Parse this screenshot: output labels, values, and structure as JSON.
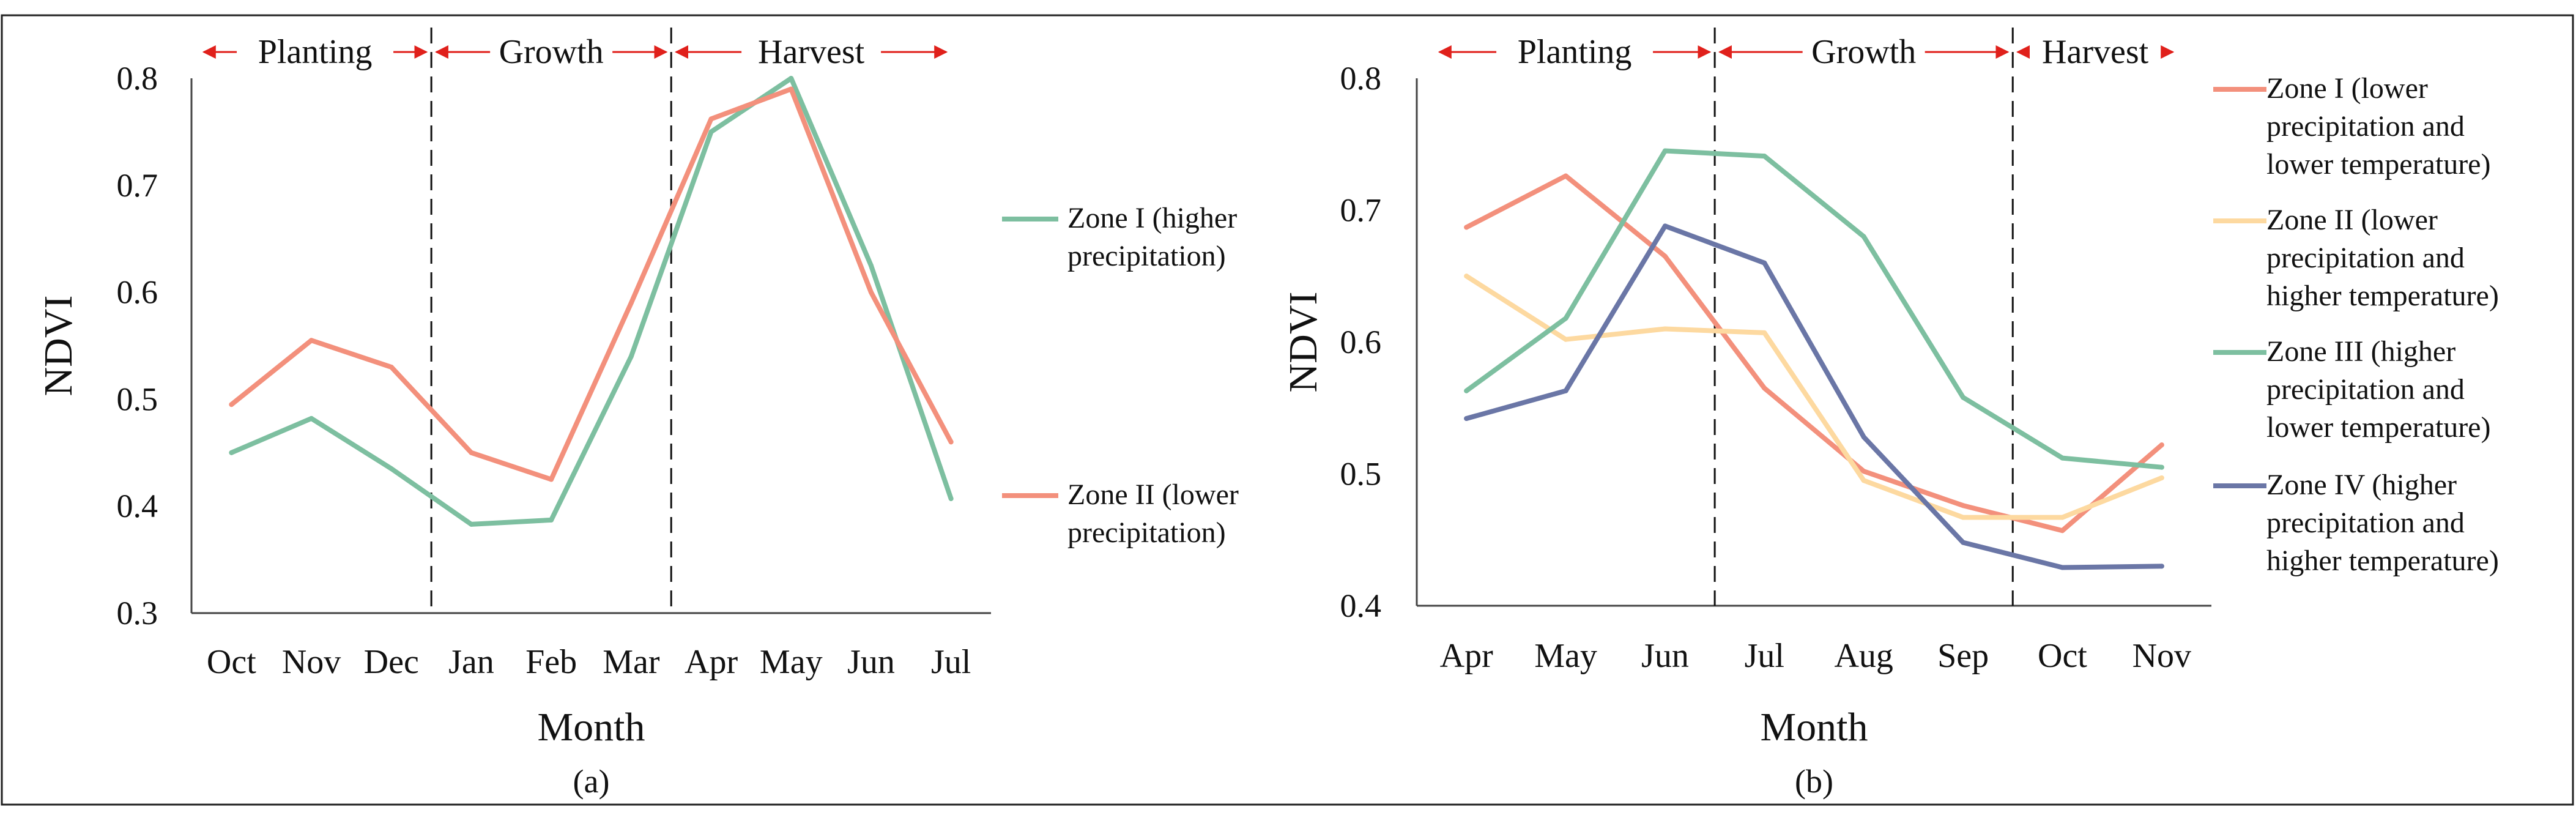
{
  "chart_data": [
    {
      "type": "line",
      "panel_label": "(a)",
      "xlabel": "Month",
      "ylabel": "NDVI",
      "categories": [
        "Oct",
        "Nov",
        "Dec",
        "Jan",
        "Feb",
        "Mar",
        "Apr",
        "May",
        "Jun",
        "Jul"
      ],
      "ylim": [
        0.3,
        0.8
      ],
      "yticks": [
        "0.3",
        "0.4",
        "0.5",
        "0.6",
        "0.7",
        "0.8"
      ],
      "grid": false,
      "legend_position": "right",
      "phases": [
        {
          "label": "Planting",
          "from": 0,
          "to": 2
        },
        {
          "label": "Growth",
          "from": 2,
          "to": 5
        },
        {
          "label": "Harvest",
          "from": 5,
          "to": 9
        }
      ],
      "series": [
        {
          "name": "Zone I (higher precipitation)",
          "legend_lines": [
            "Zone I (higher",
            "precipitation)"
          ],
          "color": "#7dbfa0",
          "values": [
            0.45,
            0.482,
            0.435,
            0.383,
            0.387,
            0.54,
            0.75,
            0.8,
            0.625,
            0.407
          ]
        },
        {
          "name": "Zone II (lower precipitation)",
          "legend_lines": [
            "Zone II (lower",
            "precipitation)"
          ],
          "color": "#f3907c",
          "values": [
            0.495,
            0.555,
            0.53,
            0.45,
            0.425,
            0.59,
            0.762,
            0.79,
            0.6,
            0.46
          ]
        }
      ]
    },
    {
      "type": "line",
      "panel_label": "(b)",
      "xlabel": "Month",
      "ylabel": "NDVI",
      "categories": [
        "Apr",
        "May",
        "Jun",
        "Jul",
        "Aug",
        "Sep",
        "Oct",
        "Nov"
      ],
      "ylim": [
        0.4,
        0.8
      ],
      "yticks": [
        "0.4",
        "0.5",
        "0.6",
        "0.7",
        "0.8"
      ],
      "grid": false,
      "legend_position": "right",
      "phases": [
        {
          "label": "Planting",
          "from": 0,
          "to": 2
        },
        {
          "label": "Growth",
          "from": 2,
          "to": 5
        },
        {
          "label": "Harvest",
          "from": 5,
          "to": 7
        }
      ],
      "series": [
        {
          "name": "Zone I (lower precipitation and lower temperature)",
          "legend_lines": [
            "Zone I  (lower",
            "precipitation and",
            "lower temperature)"
          ],
          "color": "#f3907c",
          "values": [
            0.687,
            0.726,
            0.665,
            0.565,
            0.502,
            0.476,
            0.457,
            0.522
          ]
        },
        {
          "name": "Zone II (lower precipitation and higher temperature)",
          "legend_lines": [
            "Zone II  (lower",
            "precipitation and",
            "higher temperature)"
          ],
          "color": "#fdd9a0",
          "values": [
            0.65,
            0.602,
            0.61,
            0.607,
            0.495,
            0.467,
            0.467,
            0.497
          ]
        },
        {
          "name": "Zone III (higher precipitation and lower temperature)",
          "legend_lines": [
            "Zone III  (higher",
            "precipitation and",
            "lower temperature)"
          ],
          "color": "#7dbfa0",
          "values": [
            0.563,
            0.618,
            0.745,
            0.741,
            0.68,
            0.558,
            0.512,
            0.505
          ]
        },
        {
          "name": "Zone IV (higher precipitation and higher temperature)",
          "legend_lines": [
            "Zone IV  (higher",
            "precipitation and",
            "higher temperature)"
          ],
          "color": "#6a76a6",
          "values": [
            0.542,
            0.563,
            0.688,
            0.66,
            0.528,
            0.448,
            0.429,
            0.43
          ]
        }
      ]
    }
  ]
}
